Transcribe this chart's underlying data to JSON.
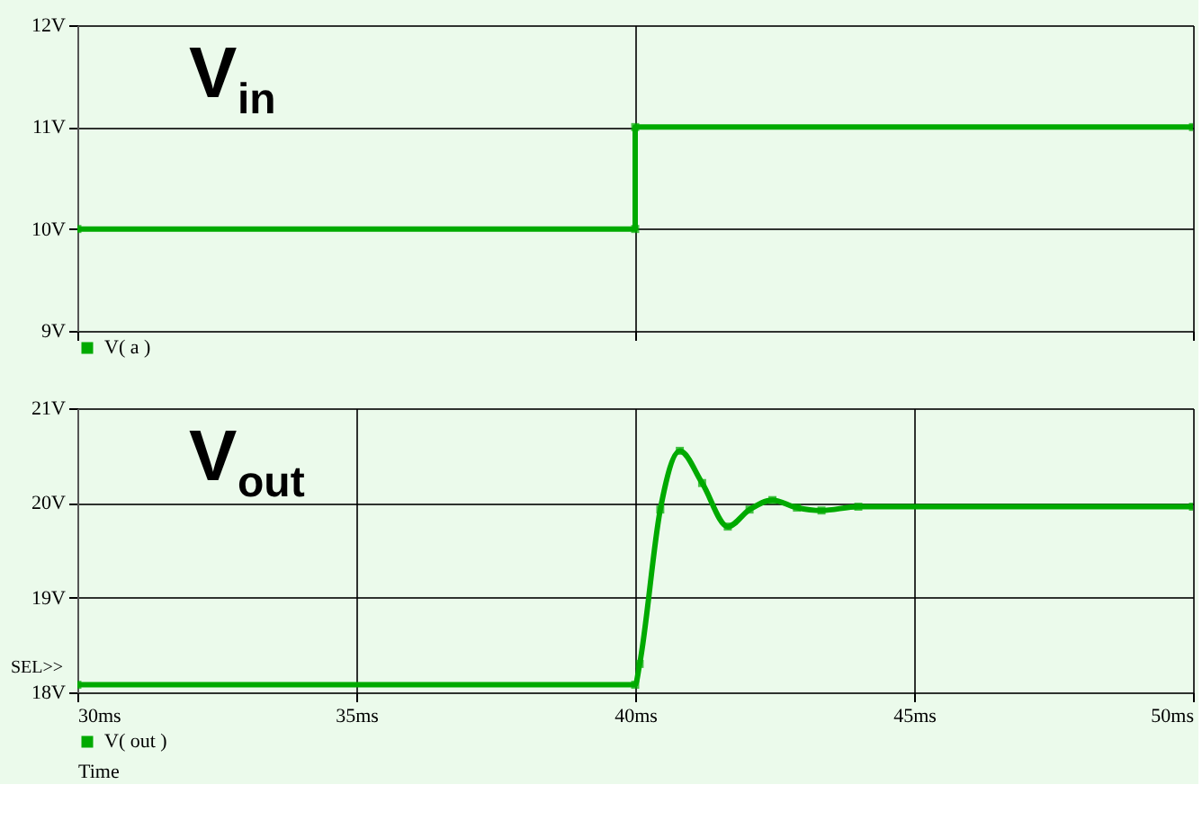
{
  "chart_data": [
    {
      "type": "line",
      "xlim": [
        30,
        50
      ],
      "xticks": [
        {
          "value": 30,
          "label": null
        },
        {
          "value": 40,
          "label": null
        },
        {
          "value": 50,
          "label": null
        }
      ],
      "ylim": [
        9,
        12
      ],
      "yticks": [
        {
          "value": 9,
          "label": "9V"
        },
        {
          "value": 10,
          "label": "10V"
        },
        {
          "value": 11,
          "label": "11V"
        },
        {
          "value": 12,
          "label": "12V"
        }
      ],
      "tick_labels": "y",
      "grid": true,
      "marker": "square",
      "legend": "bottom left",
      "annotations": [
        "V$_{in}$"
      ],
      "series": [
        {
          "name": "V( a )",
          "color": "#00aa00",
          "x": [
            30,
            40,
            40,
            50
          ],
          "values": [
            10,
            10,
            11,
            11
          ]
        }
      ]
    },
    {
      "type": "line",
      "xlim": [
        30,
        50
      ],
      "xticks": [
        {
          "value": 30,
          "label": "30ms"
        },
        {
          "value": 35,
          "label": "35ms"
        },
        {
          "value": 40,
          "label": "40ms"
        },
        {
          "value": 45,
          "label": "45ms"
        },
        {
          "value": 50,
          "label": "50ms"
        }
      ],
      "ylim": [
        18,
        21
      ],
      "yticks": [
        {
          "value": 18,
          "label": "18V"
        },
        {
          "value": 19,
          "label": "19V"
        },
        {
          "value": 20,
          "label": "20V"
        },
        {
          "value": 21,
          "label": "21V"
        }
      ],
      "xlabel": "Time",
      "grid": true,
      "marker": "square",
      "legend": "bottom left",
      "annotations": [
        "V$_{out}$",
        "SEL>>"
      ],
      "series": [
        {
          "name": "V( out )",
          "color": "#00aa00",
          "x": [
            30,
            40,
            40.08,
            40.45,
            40.8,
            41.2,
            41.66,
            42.05,
            42.46,
            42.9,
            43.34,
            44,
            50
          ],
          "values": [
            18.08,
            18.08,
            18.3,
            19.93,
            20.55,
            20.21,
            19.75,
            19.93,
            20.03,
            19.95,
            19.92,
            19.96,
            19.96
          ]
        }
      ]
    }
  ]
}
